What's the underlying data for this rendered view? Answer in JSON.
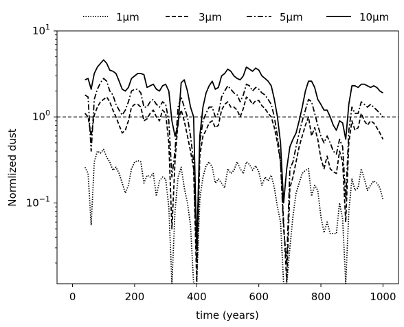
{
  "chart_data": {
    "type": "line",
    "title": "",
    "xlabel": "time (years)",
    "ylabel": "Normlized dust",
    "xlim": [
      -50,
      1050
    ],
    "ylim": [
      0.0115,
      10
    ],
    "yscale": "log",
    "grid": false,
    "legend_position": "top",
    "x_ticks": [
      0,
      200,
      400,
      600,
      800,
      1000
    ],
    "x_tick_labels": [
      "0",
      "200",
      "400",
      "600",
      "800",
      "1000"
    ],
    "y_ticks": [
      {
        "value": 10,
        "base": "10",
        "exp": "1"
      },
      {
        "value": 1,
        "base": "10",
        "exp": "0"
      },
      {
        "value": 0.1,
        "base": "10",
        "exp": "−1"
      }
    ],
    "reference_line": {
      "y": 1,
      "style": "dashed"
    },
    "x": [
      40,
      50,
      60,
      70,
      80,
      90,
      100,
      110,
      120,
      130,
      140,
      150,
      160,
      170,
      180,
      190,
      200,
      210,
      220,
      230,
      240,
      250,
      260,
      270,
      280,
      290,
      300,
      310,
      320,
      330,
      340,
      350,
      360,
      370,
      380,
      390,
      400,
      410,
      420,
      430,
      440,
      450,
      460,
      470,
      480,
      490,
      500,
      510,
      520,
      530,
      540,
      550,
      560,
      570,
      580,
      590,
      600,
      610,
      620,
      630,
      640,
      650,
      660,
      670,
      680,
      690,
      700,
      710,
      720,
      730,
      740,
      750,
      760,
      770,
      780,
      790,
      800,
      810,
      820,
      830,
      840,
      850,
      860,
      870,
      880,
      890,
      900,
      910,
      920,
      930,
      940,
      950,
      960,
      970,
      980,
      990,
      1000
    ],
    "series": [
      {
        "name": "1µm",
        "style": "dotted",
        "values": [
          0.26,
          0.22,
          0.055,
          0.3,
          0.4,
          0.38,
          0.42,
          0.34,
          0.3,
          0.24,
          0.26,
          0.22,
          0.17,
          0.13,
          0.16,
          0.25,
          0.3,
          0.31,
          0.3,
          0.17,
          0.21,
          0.2,
          0.22,
          0.12,
          0.18,
          0.2,
          0.19,
          0.09,
          0.011,
          0.08,
          0.2,
          0.26,
          0.15,
          0.1,
          0.055,
          0.011,
          0.011,
          0.11,
          0.2,
          0.27,
          0.3,
          0.26,
          0.17,
          0.19,
          0.17,
          0.15,
          0.25,
          0.22,
          0.24,
          0.3,
          0.25,
          0.22,
          0.3,
          0.28,
          0.24,
          0.27,
          0.23,
          0.16,
          0.2,
          0.18,
          0.21,
          0.15,
          0.09,
          0.06,
          0.011,
          0.011,
          0.03,
          0.07,
          0.13,
          0.17,
          0.22,
          0.24,
          0.25,
          0.12,
          0.16,
          0.14,
          0.07,
          0.045,
          0.06,
          0.044,
          0.044,
          0.044,
          0.1,
          0.065,
          0.011,
          0.08,
          0.19,
          0.14,
          0.15,
          0.25,
          0.19,
          0.14,
          0.16,
          0.18,
          0.17,
          0.15,
          0.11
        ]
      },
      {
        "name": "3µm",
        "style": "dashed",
        "values": [
          1.1,
          1.0,
          0.6,
          1.05,
          1.3,
          1.5,
          1.6,
          1.7,
          1.5,
          1.2,
          1.0,
          0.8,
          0.65,
          0.7,
          0.9,
          1.3,
          1.4,
          1.4,
          1.3,
          0.9,
          0.95,
          1.1,
          1.2,
          1.0,
          0.9,
          1.2,
          1.1,
          0.5,
          0.05,
          0.3,
          0.9,
          1.2,
          0.9,
          0.6,
          0.4,
          0.25,
          0.012,
          0.35,
          0.6,
          0.7,
          0.85,
          0.9,
          0.75,
          0.8,
          1.2,
          1.4,
          1.5,
          1.3,
          1.3,
          1.2,
          1.0,
          1.25,
          1.7,
          1.6,
          1.4,
          1.55,
          1.55,
          1.35,
          1.25,
          1.1,
          1.0,
          0.75,
          0.5,
          0.3,
          0.06,
          0.012,
          0.15,
          0.2,
          0.3,
          0.45,
          0.6,
          0.8,
          1.0,
          0.6,
          0.75,
          0.55,
          0.33,
          0.25,
          0.35,
          0.25,
          0.23,
          0.22,
          0.4,
          0.3,
          0.06,
          0.5,
          0.9,
          0.7,
          0.75,
          1.1,
          0.9,
          0.8,
          0.9,
          0.85,
          0.75,
          0.65,
          0.55
        ]
      },
      {
        "name": "5µm",
        "style": "dashdot",
        "values": [
          1.8,
          1.7,
          0.4,
          1.6,
          2.1,
          2.5,
          2.8,
          2.6,
          2.0,
          1.8,
          1.4,
          1.2,
          1.05,
          1.2,
          1.5,
          2.0,
          2.1,
          2.1,
          1.9,
          1.3,
          1.3,
          1.5,
          1.6,
          1.4,
          1.3,
          1.5,
          1.4,
          0.9,
          0.2,
          0.4,
          1.3,
          1.7,
          1.3,
          1.0,
          0.6,
          0.3,
          0.02,
          0.5,
          0.9,
          1.1,
          1.3,
          1.3,
          1.0,
          1.1,
          1.7,
          2.0,
          2.3,
          2.1,
          1.9,
          1.8,
          1.5,
          1.8,
          2.4,
          2.3,
          2.0,
          2.2,
          2.1,
          1.9,
          1.8,
          1.6,
          1.4,
          1.0,
          0.6,
          0.3,
          0.05,
          0.02,
          0.25,
          0.3,
          0.45,
          0.65,
          0.9,
          1.2,
          1.6,
          1.5,
          1.1,
          0.8,
          0.6,
          0.5,
          0.6,
          0.5,
          0.4,
          0.37,
          0.55,
          0.45,
          0.11,
          0.7,
          1.3,
          1.1,
          1.1,
          1.5,
          1.4,
          1.3,
          1.4,
          1.3,
          1.2,
          1.1,
          1.0
        ]
      },
      {
        "name": "10µm",
        "style": "solid",
        "values": [
          2.7,
          2.8,
          2.1,
          3.2,
          3.8,
          4.2,
          4.6,
          4.2,
          3.5,
          3.4,
          3.2,
          2.6,
          2.1,
          2.0,
          2.2,
          2.8,
          3.0,
          3.2,
          3.2,
          3.1,
          2.2,
          2.3,
          2.4,
          2.1,
          2.0,
          2.3,
          2.4,
          2.0,
          0.9,
          0.6,
          0.8,
          2.5,
          2.7,
          2.0,
          1.3,
          1.0,
          0.03,
          0.6,
          1.3,
          1.9,
          2.3,
          2.6,
          2.1,
          2.2,
          3.0,
          3.2,
          3.6,
          3.4,
          3.0,
          2.8,
          2.7,
          3.0,
          3.8,
          3.6,
          3.4,
          3.7,
          3.5,
          3.0,
          2.8,
          2.6,
          2.3,
          1.6,
          1.0,
          0.5,
          0.1,
          0.25,
          0.45,
          0.55,
          0.65,
          0.9,
          1.3,
          2.0,
          2.6,
          2.6,
          2.2,
          1.6,
          1.4,
          1.2,
          1.2,
          1.0,
          0.8,
          0.7,
          0.9,
          0.85,
          0.55,
          1.4,
          2.3,
          2.3,
          2.2,
          2.4,
          2.4,
          2.3,
          2.2,
          2.3,
          2.2,
          2.0,
          1.9
        ]
      }
    ]
  }
}
